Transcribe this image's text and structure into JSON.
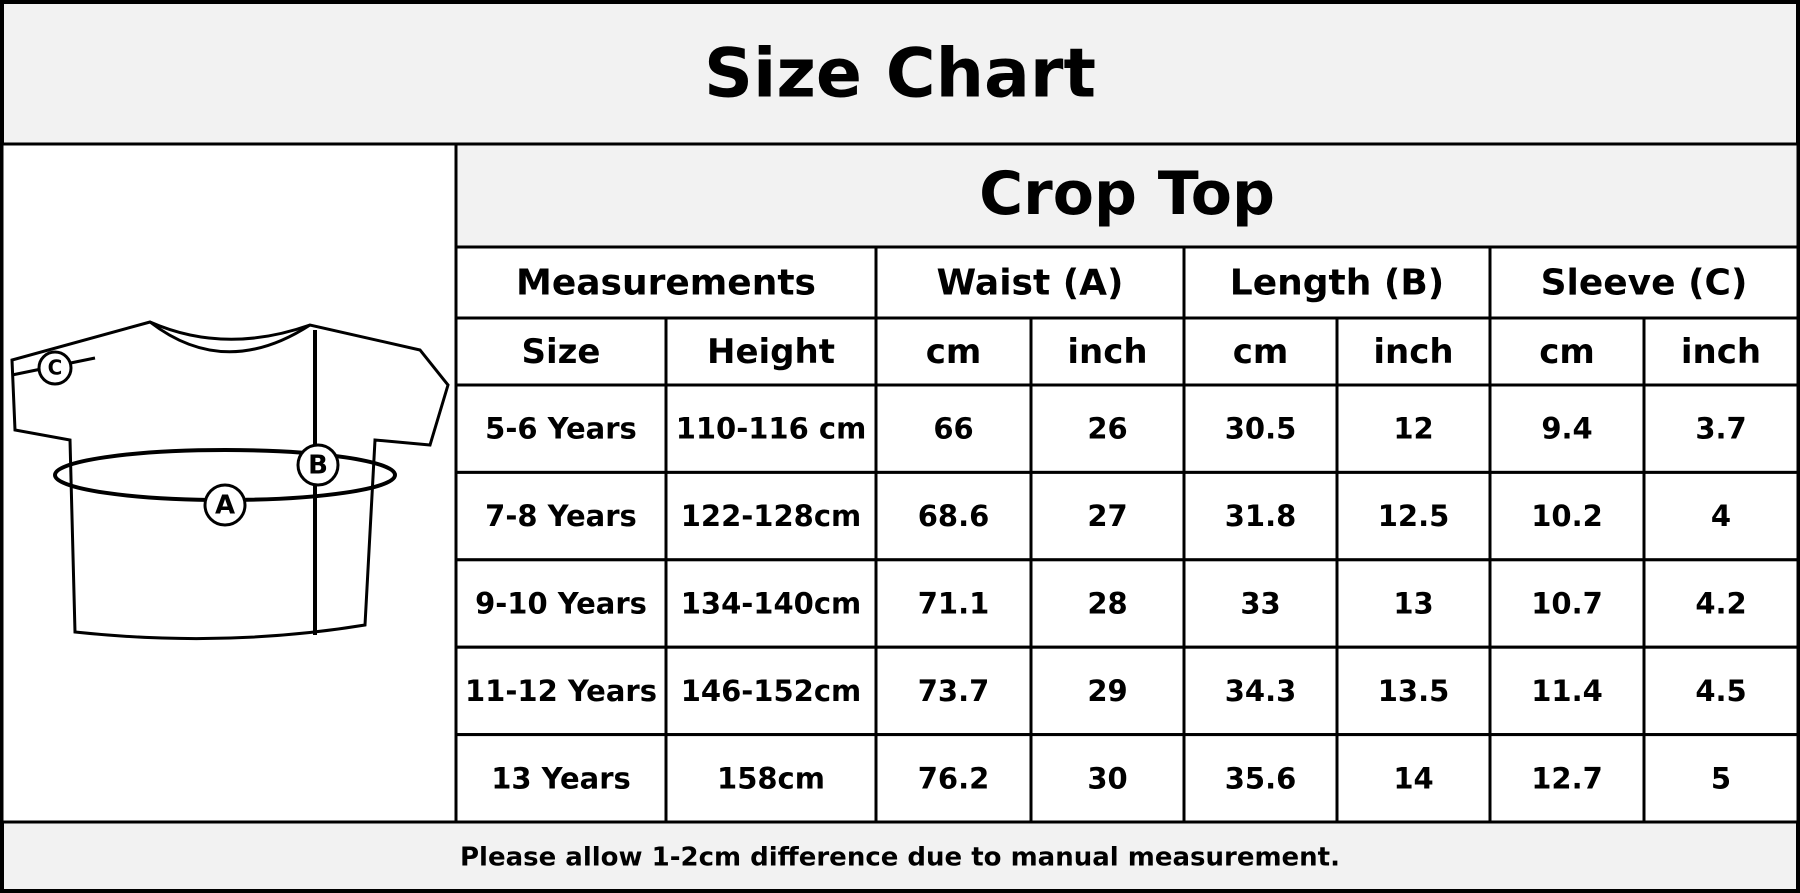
{
  "header": {
    "title": "Size Chart"
  },
  "diagram": {
    "labels": [
      "A",
      "B",
      "C"
    ]
  },
  "table": {
    "title": "Crop Top",
    "groups": [
      "Measurements",
      "Waist (A)",
      "Length (B)",
      "Sleeve (C)"
    ],
    "columns": [
      "Size",
      "Height",
      "cm",
      "inch",
      "cm",
      "inch",
      "cm",
      "inch"
    ],
    "rows": [
      [
        "5-6 Years",
        "110-116 cm",
        "66",
        "26",
        "30.5",
        "12",
        "9.4",
        "3.7"
      ],
      [
        "7-8 Years",
        "122-128cm",
        "68.6",
        "27",
        "31.8",
        "12.5",
        "10.2",
        "4"
      ],
      [
        "9-10 Years",
        "134-140cm",
        "71.1",
        "28",
        "33",
        "13",
        "10.7",
        "4.2"
      ],
      [
        "11-12 Years",
        "146-152cm",
        "73.7",
        "29",
        "34.3",
        "13.5",
        "11.4",
        "4.5"
      ],
      [
        "13 Years",
        "158cm",
        "76.2",
        "30",
        "35.6",
        "14",
        "12.7",
        "5"
      ]
    ]
  },
  "footer": {
    "note": "Please allow 1-2cm difference due to manual measurement."
  }
}
